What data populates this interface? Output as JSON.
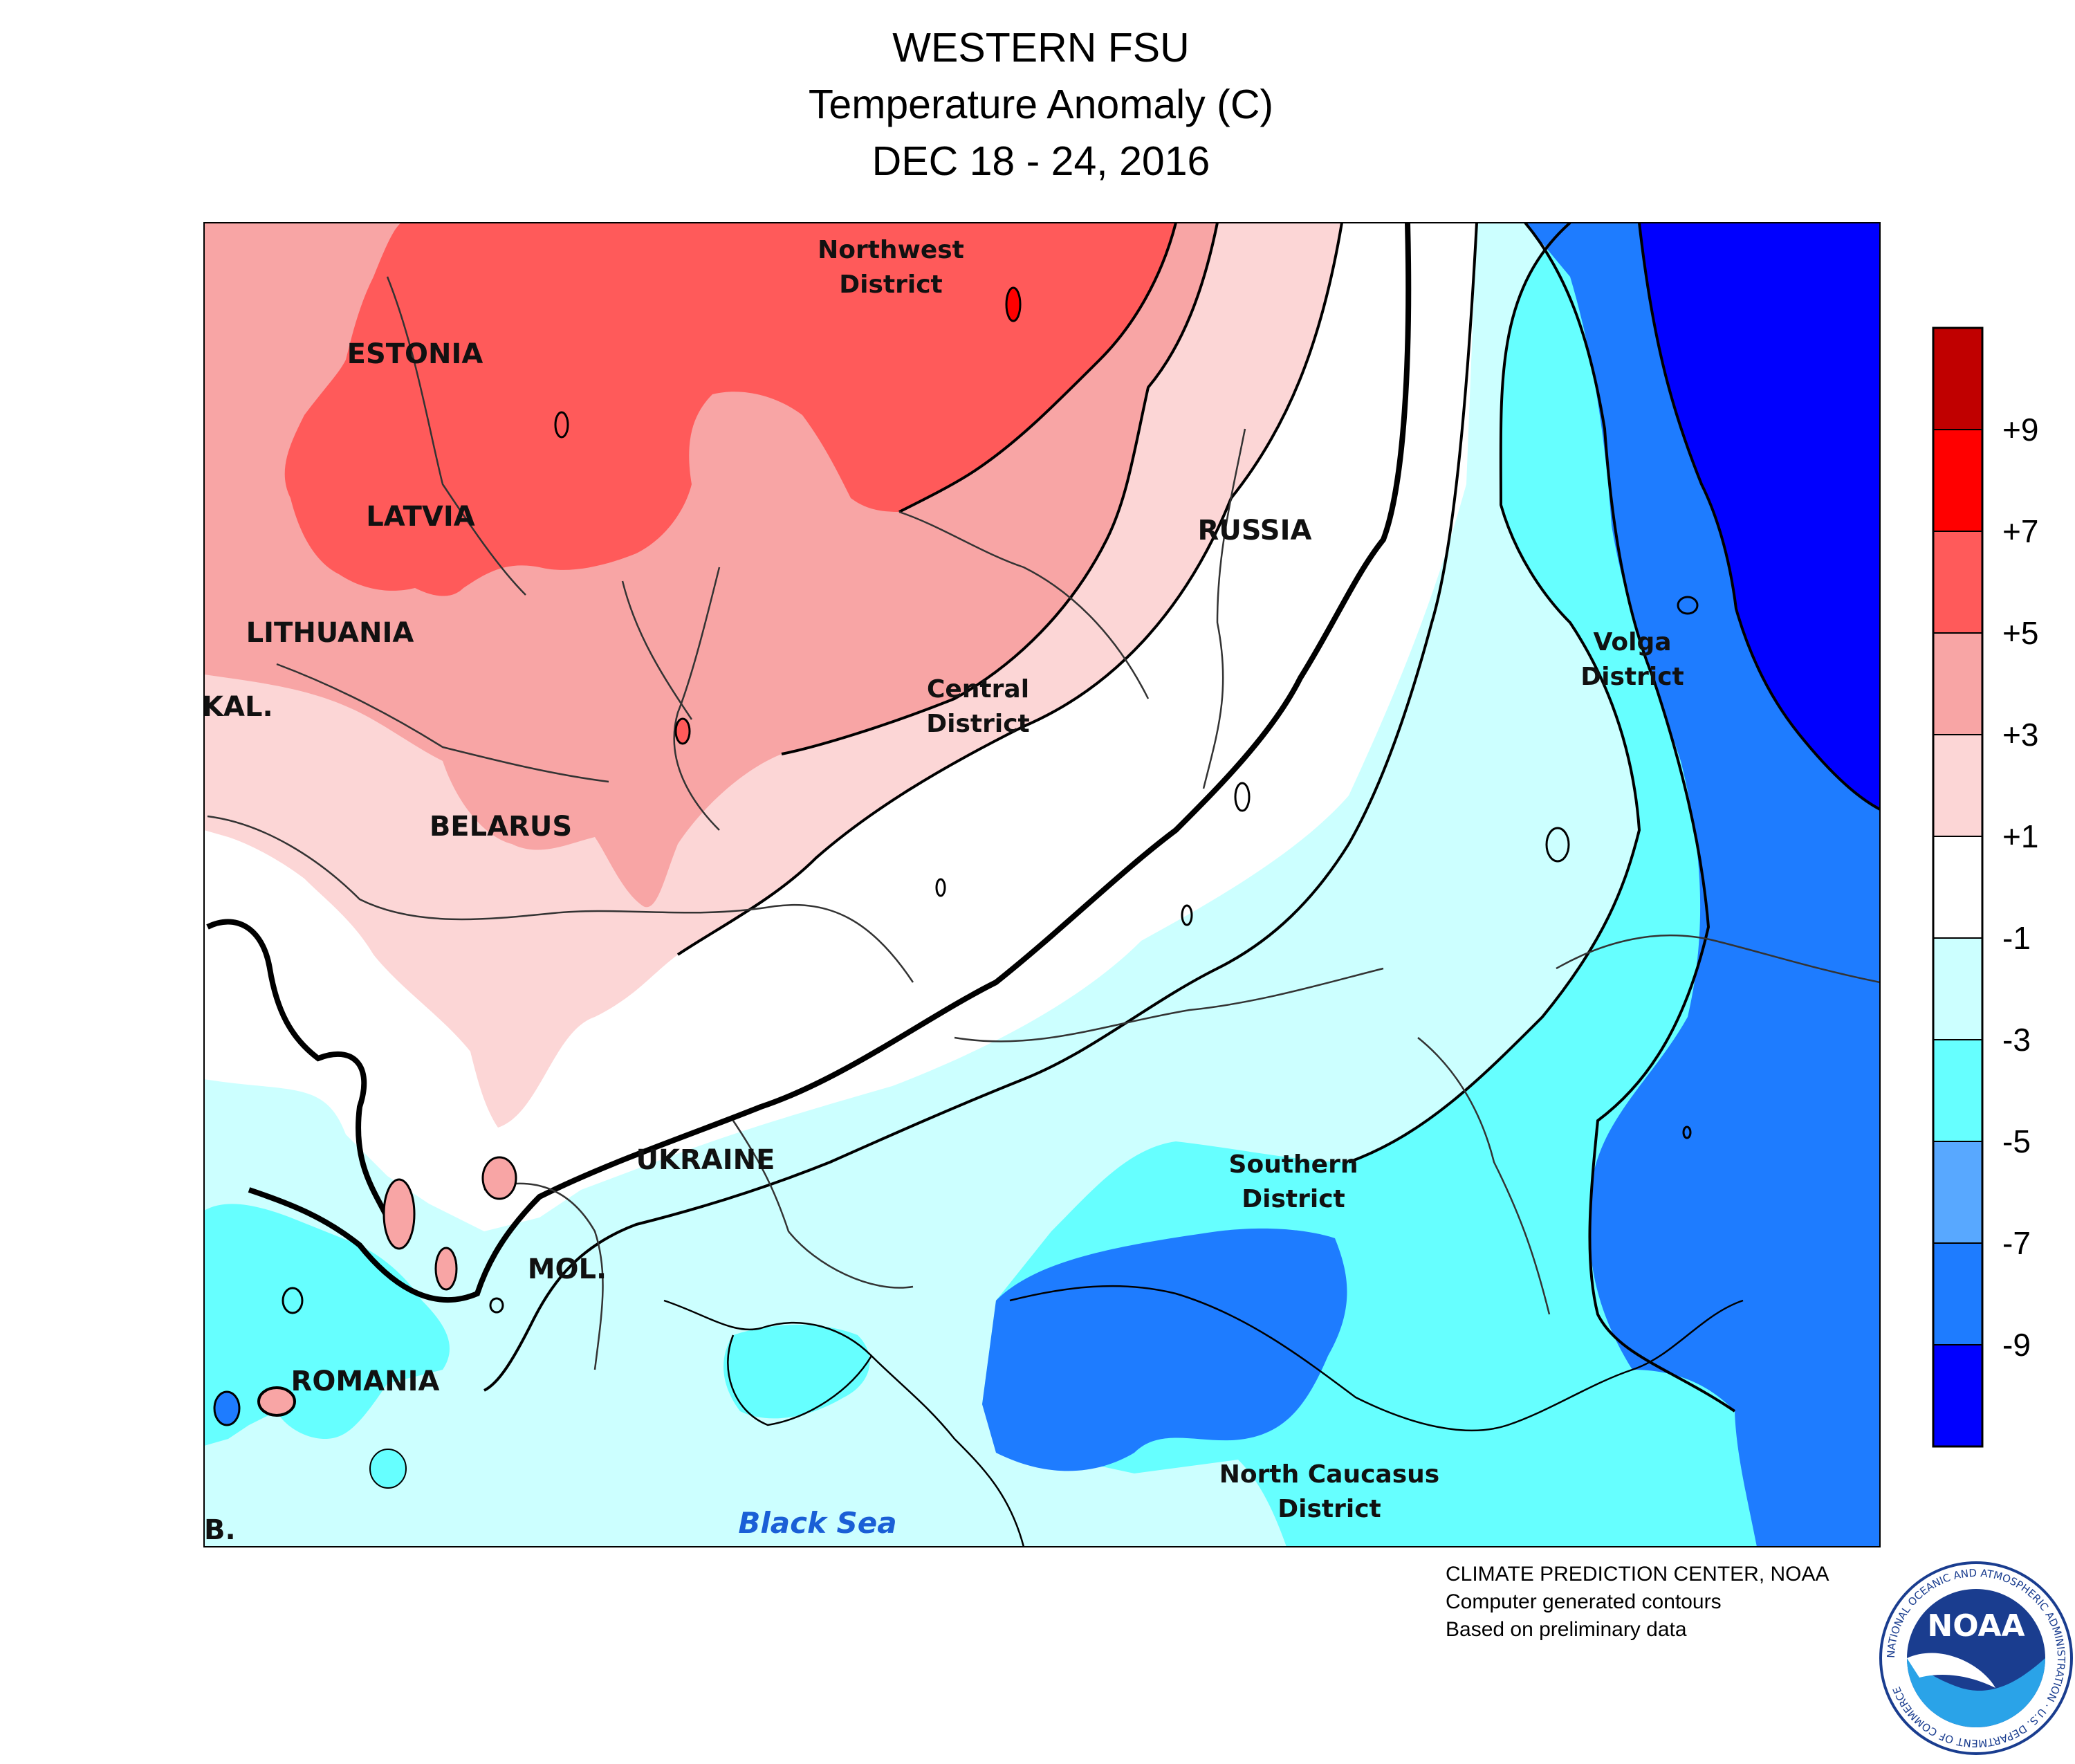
{
  "header": {
    "title": "WESTERN FSU",
    "subtitle": "Temperature Anomaly (C)",
    "period": "DEC 18 - 24, 2016"
  },
  "map": {
    "countries": [
      "ESTONIA",
      "LATVIA",
      "LITHUANIA",
      "KAL.",
      "BELARUS",
      "UKRAINE",
      "MOL.",
      "ROMANIA",
      "RUSSIA",
      "B."
    ],
    "districts": [
      {
        "line1": "Northwest",
        "line2": "District"
      },
      {
        "line1": "Central",
        "line2": "District"
      },
      {
        "line1": "Volga",
        "line2": "District"
      },
      {
        "line1": "Southern",
        "line2": "District"
      },
      {
        "line1": "North Caucasus",
        "line2": "District"
      }
    ],
    "sea": "Black Sea"
  },
  "legend": {
    "colors": [
      "#c00000",
      "#ff0000",
      "#ff5a5a",
      "#f8a5a5",
      "#fcd6d6",
      "#ffffff",
      "#ccffff",
      "#66ffff",
      "#58a8ff",
      "#1e7cff",
      "#0000ff"
    ],
    "ticks": [
      "+9",
      "+7",
      "+5",
      "+3",
      "+1",
      "-1",
      "-3",
      "-5",
      "-7",
      "-9"
    ]
  },
  "credits": {
    "line1": "CLIMATE PREDICTION CENTER, NOAA",
    "line2": "Computer generated contours",
    "line3": "Based on preliminary data"
  },
  "logo": {
    "text": "NOAA",
    "ring_text": "NATIONAL OCEANIC AND ATMOSPHERIC ADMINISTRATION · U.S. DEPARTMENT OF COMMERCE"
  }
}
